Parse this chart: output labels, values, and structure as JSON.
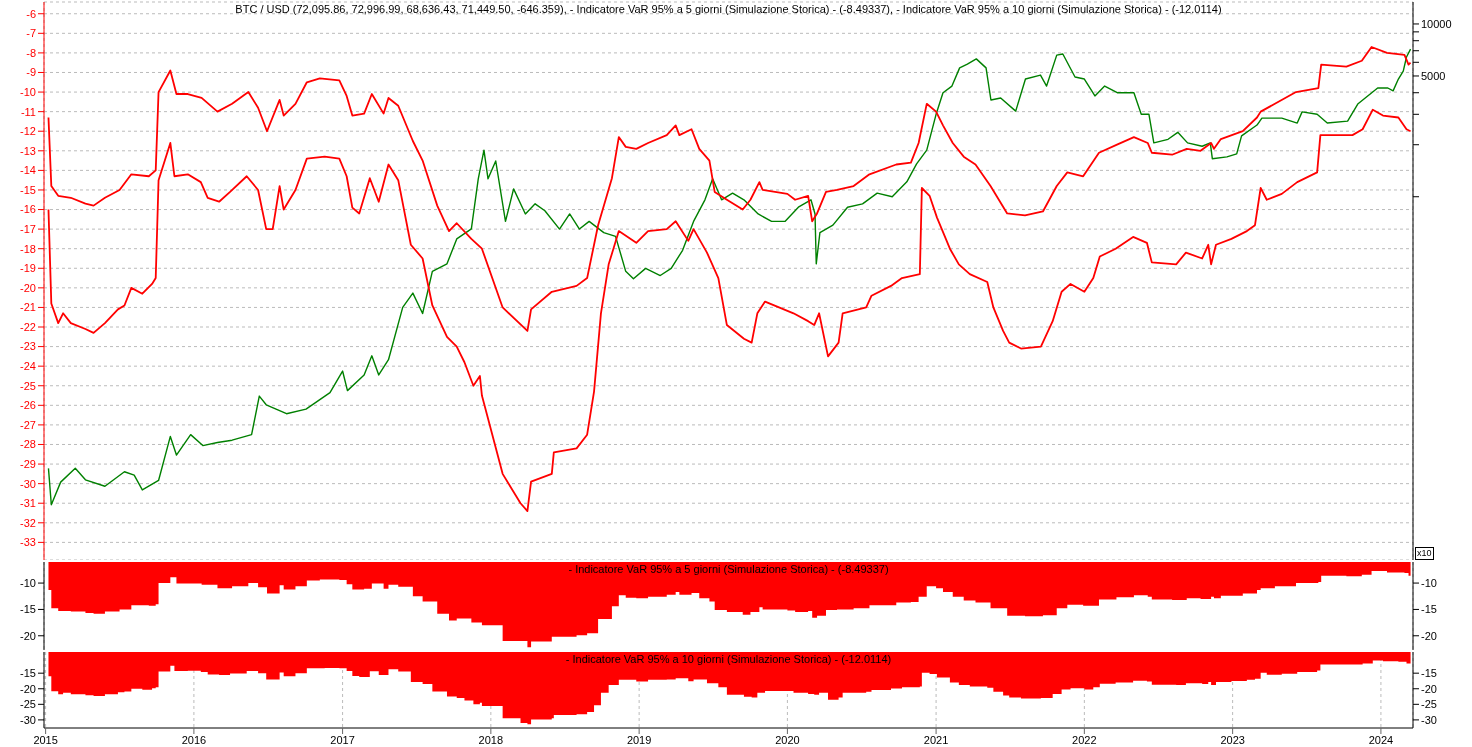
{
  "chart_data": [
    {
      "type": "line",
      "title": "BTC / USD (72,095.86, 72,996.99, 68,636.43, 71,449.50, -646.359), - Indicatore VaR 95% a 5 giorni (Simulazione Storica) - (-8.49337), - Indicatore VaR 95% a 10 giorni (Simulazione Storica) - (-12.0114)",
      "annotations": [
        "x10"
      ],
      "grid": true,
      "tick_labels": "y",
      "log": "y2",
      "xlim": [
        "2014-12-28",
        "2024-03-20"
      ],
      "xticks": [
        "2015",
        "2016",
        "2017",
        "2018",
        "2019",
        "2020",
        "2021",
        "2022",
        "2023",
        "2024"
      ],
      "ylim": [
        -33.9,
        -5.4
      ],
      "yticks": [
        -6,
        -7,
        -8,
        -9,
        -10,
        -11,
        -12,
        -13,
        -14,
        -15,
        -16,
        -17,
        -18,
        -19,
        -20,
        -21,
        -22,
        -23,
        -24,
        -25,
        -26,
        -27,
        -28,
        -29,
        -30,
        -31,
        -32,
        -33
      ],
      "y2lim": [
        7.9,
        13400
      ],
      "y2ticks": [
        {
          "value": 1000,
          "label": null
        },
        {
          "value": 2000,
          "label": null
        },
        {
          "value": 3000,
          "label": null
        },
        {
          "value": 4000,
          "label": null
        },
        5000,
        {
          "value": 6000,
          "label": null
        },
        {
          "value": 7000,
          "label": null
        },
        {
          "value": 8000,
          "label": null
        },
        {
          "value": 9000,
          "label": null
        },
        10000
      ],
      "series": [
        {
          "axis": "y2",
          "color": "#008000",
          "x": [
            "2015-01-08",
            "2015-01-15",
            "2015-02-07",
            "2015-03-15",
            "2015-04-09",
            "2015-05-27",
            "2015-07-14",
            "2015-08-07",
            "2015-08-27",
            "2015-10-06",
            "2015-11-04",
            "2015-11-19",
            "2015-12-24",
            "2016-01-23",
            "2016-02-28",
            "2016-04-04",
            "2016-05-22",
            "2016-06-10",
            "2016-06-27",
            "2016-08-16",
            "2016-10-03",
            "2016-12-01",
            "2017-01-01",
            "2017-01-13",
            "2017-02-23",
            "2017-03-14",
            "2017-03-31",
            "2017-04-24",
            "2017-05-29",
            "2017-06-23",
            "2017-07-17",
            "2017-08-10",
            "2017-09-15",
            "2017-10-09",
            "2017-11-14",
            "2017-12-01",
            "2017-12-15",
            "2017-12-25",
            "2018-01-13",
            "2018-02-06",
            "2018-02-26",
            "2018-03-27",
            "2018-04-20",
            "2018-05-14",
            "2018-06-19",
            "2018-07-14",
            "2018-08-07",
            "2018-08-31",
            "2018-10-06",
            "2018-11-04",
            "2018-11-29",
            "2018-12-18",
            "2019-01-17",
            "2019-02-22",
            "2019-03-21",
            "2019-04-18",
            "2019-05-15",
            "2019-06-12",
            "2019-07-01",
            "2019-07-23",
            "2019-08-19",
            "2019-09-16",
            "2019-10-21",
            "2019-11-23",
            "2019-12-26",
            "2020-01-28",
            "2020-02-28",
            "2020-03-09",
            "2020-03-12",
            "2020-03-21",
            "2020-04-22",
            "2020-05-28",
            "2020-07-04",
            "2020-08-09",
            "2020-09-15",
            "2020-10-21",
            "2020-11-14",
            "2020-12-09",
            "2021-01-01",
            "2021-01-18",
            "2021-02-09",
            "2021-02-28",
            "2021-03-19",
            "2021-04-10",
            "2021-05-04",
            "2021-05-16",
            "2021-06-09",
            "2021-07-16",
            "2021-08-09",
            "2021-09-15",
            "2021-09-30",
            "2021-10-25",
            "2021-11-09",
            "2021-12-09",
            "2022-01-01",
            "2022-01-27",
            "2022-02-20",
            "2022-03-23",
            "2022-05-03",
            "2022-05-21",
            "2022-06-09",
            "2022-06-21",
            "2022-07-26",
            "2022-08-19",
            "2022-09-12",
            "2022-10-18",
            "2022-11-07",
            "2022-11-12",
            "2022-12-18",
            "2023-01-11",
            "2023-01-23",
            "2023-03-02",
            "2023-03-14",
            "2023-05-02",
            "2023-06-09",
            "2023-06-21",
            "2023-07-28",
            "2023-08-22",
            "2023-10-11",
            "2023-11-05",
            "2023-12-24",
            "2024-01-18",
            "2024-01-31",
            "2024-02-13",
            "2024-02-25",
            "2024-03-04",
            "2024-03-14"
          ],
          "values": [
            26.8,
            16.5,
            22.3,
            26.8,
            23,
            21.1,
            25.6,
            24.5,
            20.1,
            22.8,
            41,
            32,
            42,
            36.3,
            37.8,
            39,
            42,
            70.2,
            62.5,
            55.5,
            59,
            73.5,
            98,
            75.5,
            93,
            120,
            93,
            114,
            229,
            277,
            211,
            370,
            409,
            570,
            652,
            1270,
            1860,
            1270,
            1610,
            720,
            1110,
            795,
            910,
            830,
            650,
            795,
            650,
            720,
            620,
            590,
            370,
            335,
            385,
            350,
            385,
            490,
            720,
            960,
            1270,
            960,
            1050,
            960,
            795,
            720,
            720,
            870,
            960,
            795,
            409,
            620,
            685,
            870,
            910,
            1050,
            1000,
            1220,
            1550,
            1860,
            3000,
            4000,
            4370,
            5570,
            5860,
            6280,
            5570,
            3630,
            3730,
            3130,
            4800,
            5060,
            4370,
            6600,
            6700,
            4930,
            4800,
            3830,
            4370,
            4000,
            4000,
            3000,
            3000,
            2050,
            2150,
            2360,
            2050,
            1960,
            2050,
            1660,
            1700,
            1770,
            2250,
            2600,
            2850,
            2850,
            2670,
            3100,
            3000,
            2670,
            2740,
            3440,
            4260,
            4260,
            4100,
            4800,
            5340,
            6440,
            7145
          ]
        },
        {
          "color": "#ff0000",
          "x": [
            "2015-01-08",
            "2015-01-15",
            "2015-02-01",
            "2015-03-04",
            "2015-04-09",
            "2015-04-29",
            "2015-05-27",
            "2015-07-02",
            "2015-07-31",
            "2015-09-12",
            "2015-09-29",
            "2015-10-06",
            "2015-11-04",
            "2015-11-19",
            "2015-12-17",
            "2016-01-20",
            "2016-02-28",
            "2016-04-04",
            "2016-05-14",
            "2016-06-07",
            "2016-06-29",
            "2016-07-30",
            "2016-08-09",
            "2016-09-07",
            "2016-10-05",
            "2016-11-06",
            "2016-12-24",
            "2017-01-11",
            "2017-01-25",
            "2017-02-23",
            "2017-03-14",
            "2017-04-12",
            "2017-04-24",
            "2017-05-18",
            "2017-06-23",
            "2017-07-17",
            "2017-08-22",
            "2017-09-20",
            "2017-10-09",
            "2017-11-14",
            "2017-12-10",
            "2018-01-30",
            "2018-04-01",
            "2018-04-10",
            "2018-05-31",
            "2018-07-31",
            "2018-08-26",
            "2018-09-22",
            "2018-10-26",
            "2018-11-12",
            "2018-11-29",
            "2018-12-25",
            "2019-01-23",
            "2019-03-10",
            "2019-04-01",
            "2019-04-10",
            "2019-05-10",
            "2019-05-29",
            "2019-06-23",
            "2019-07-06",
            "2019-08-05",
            "2019-09-13",
            "2019-10-02",
            "2019-10-24",
            "2019-11-01",
            "2020-01-01",
            "2020-01-20",
            "2020-02-21",
            "2020-03-02",
            "2020-03-14",
            "2020-04-05",
            "2020-05-02",
            "2020-06-12",
            "2020-07-21",
            "2020-09-25",
            "2020-10-31",
            "2020-11-19",
            "2020-12-09",
            "2021-01-01",
            "2021-01-18",
            "2021-02-11",
            "2021-03-10",
            "2021-04-08",
            "2021-05-15",
            "2021-06-25",
            "2021-08-08",
            "2021-09-21",
            "2021-10-25",
            "2021-11-20",
            "2021-12-29",
            "2022-02-06",
            "2022-03-21",
            "2022-05-03",
            "2022-06-06",
            "2022-06-16",
            "2022-08-05",
            "2022-09-10",
            "2022-10-14",
            "2022-11-09",
            "2022-11-16",
            "2022-12-03",
            "2023-01-26",
            "2023-03-02",
            "2023-03-11",
            "2023-04-15",
            "2023-06-06",
            "2023-07-31",
            "2023-08-07",
            "2023-10-08",
            "2023-11-15",
            "2023-12-09",
            "2024-01-16",
            "2024-02-28",
            "2024-03-09",
            "2024-03-14"
          ],
          "values": [
            -11.3,
            -14.8,
            -15.3,
            -15.4,
            -15.7,
            -15.8,
            -15.4,
            -15.0,
            -14.2,
            -14.3,
            -14.0,
            -10.0,
            -8.9,
            -10.1,
            -10.1,
            -10.3,
            -11.0,
            -10.6,
            -10.0,
            -10.8,
            -12.0,
            -10.4,
            -11.2,
            -10.6,
            -9.5,
            -9.3,
            -9.4,
            -10.2,
            -11.2,
            -11.1,
            -10.1,
            -11.1,
            -10.3,
            -10.7,
            -12.5,
            -13.5,
            -15.8,
            -17.1,
            -16.7,
            -17.5,
            -18.0,
            -21.0,
            -22.2,
            -21.1,
            -20.2,
            -19.9,
            -19.5,
            -16.8,
            -14.4,
            -12.3,
            -12.8,
            -12.9,
            -12.6,
            -12.2,
            -11.7,
            -12.2,
            -11.9,
            -12.9,
            -13.5,
            -15.1,
            -15.5,
            -16.0,
            -15.5,
            -14.6,
            -15.0,
            -15.2,
            -15.5,
            -15.3,
            -16.6,
            -16.2,
            -15.1,
            -15.0,
            -14.8,
            -14.2,
            -13.7,
            -13.6,
            -12.6,
            -10.6,
            -11.0,
            -11.7,
            -12.6,
            -13.3,
            -13.7,
            -14.8,
            -16.2,
            -16.3,
            -16.1,
            -14.8,
            -14.1,
            -14.3,
            -13.1,
            -12.7,
            -12.3,
            -12.6,
            -13.1,
            -13.2,
            -12.9,
            -13.0,
            -12.6,
            -12.9,
            -12.4,
            -12.0,
            -11.3,
            -11.0,
            -10.6,
            -10.0,
            -9.8,
            -8.6,
            -8.7,
            -8.4,
            -7.7,
            -8.0,
            -8.1,
            -8.6,
            -8.5
          ]
        },
        {
          "color": "#ff0000",
          "x": [
            "2015-01-08",
            "2015-01-15",
            "2015-02-01",
            "2015-02-13",
            "2015-03-04",
            "2015-04-09",
            "2015-04-29",
            "2015-05-27",
            "2015-06-28",
            "2015-07-14",
            "2015-07-31",
            "2015-08-27",
            "2015-09-20",
            "2015-09-29",
            "2015-10-06",
            "2015-11-04",
            "2015-11-14",
            "2015-12-17",
            "2016-01-18",
            "2016-02-04",
            "2016-03-03",
            "2016-03-30",
            "2016-05-10",
            "2016-06-07",
            "2016-06-27",
            "2016-07-13",
            "2016-07-30",
            "2016-08-09",
            "2016-09-07",
            "2016-10-05",
            "2016-11-18",
            "2016-12-24",
            "2017-01-11",
            "2017-01-25",
            "2017-02-11",
            "2017-03-09",
            "2017-03-31",
            "2017-04-24",
            "2017-05-18",
            "2017-06-18",
            "2017-07-17",
            "2017-08-10",
            "2017-09-15",
            "2017-10-09",
            "2017-10-28",
            "2017-11-19",
            "2017-12-05",
            "2017-12-10",
            "2018-01-30",
            "2018-03-15",
            "2018-04-01",
            "2018-04-10",
            "2018-05-31",
            "2018-06-05",
            "2018-07-31",
            "2018-08-26",
            "2018-09-12",
            "2018-09-29",
            "2018-10-18",
            "2018-11-12",
            "2018-12-25",
            "2019-01-23",
            "2019-03-10",
            "2019-04-01",
            "2019-05-02",
            "2019-05-15",
            "2019-06-17",
            "2019-07-15",
            "2019-08-05",
            "2019-09-16",
            "2019-10-05",
            "2019-10-19",
            "2019-11-07",
            "2020-01-16",
            "2020-02-21",
            "2020-03-07",
            "2020-03-19",
            "2020-04-10",
            "2020-05-06",
            "2020-05-16",
            "2020-07-13",
            "2020-07-26",
            "2020-09-12",
            "2020-10-09",
            "2020-11-22",
            "2020-11-27",
            "2020-12-16",
            "2021-01-03",
            "2021-02-04",
            "2021-02-26",
            "2021-03-25",
            "2021-05-07",
            "2021-05-22",
            "2021-06-15",
            "2021-06-30",
            "2021-07-29",
            "2021-09-16",
            "2021-10-15",
            "2021-11-06",
            "2021-11-28",
            "2022-01-01",
            "2022-01-23",
            "2022-02-08",
            "2022-03-19",
            "2022-05-01",
            "2022-06-04",
            "2022-06-16",
            "2022-08-15",
            "2022-09-08",
            "2022-10-18",
            "2022-11-02",
            "2022-11-09",
            "2022-11-21",
            "2022-12-29",
            "2023-02-05",
            "2023-02-25",
            "2023-03-11",
            "2023-03-26",
            "2023-05-02",
            "2023-06-09",
            "2023-07-28",
            "2023-08-05",
            "2023-10-23",
            "2023-11-17",
            "2023-12-12",
            "2024-01-06",
            "2024-02-13",
            "2024-03-04",
            "2024-03-14"
          ],
          "values": [
            -16.0,
            -20.8,
            -21.8,
            -21.3,
            -21.8,
            -22.1,
            -22.3,
            -21.8,
            -21.1,
            -20.9,
            -20.0,
            -20.3,
            -19.8,
            -19.5,
            -14.5,
            -12.6,
            -14.3,
            -14.2,
            -14.6,
            -15.4,
            -15.6,
            -15.1,
            -14.3,
            -15.0,
            -17.0,
            -17.0,
            -14.8,
            -16.0,
            -15.0,
            -13.4,
            -13.3,
            -13.4,
            -14.3,
            -15.9,
            -16.2,
            -14.4,
            -15.6,
            -13.7,
            -14.5,
            -17.8,
            -18.5,
            -20.9,
            -22.5,
            -23.0,
            -23.8,
            -25.0,
            -24.5,
            -25.5,
            -29.5,
            -31.0,
            -31.4,
            -29.9,
            -29.5,
            -28.4,
            -28.2,
            -27.5,
            -25.3,
            -21.3,
            -18.8,
            -17.1,
            -17.7,
            -17.1,
            -17.0,
            -16.6,
            -17.6,
            -17.0,
            -18.2,
            -19.5,
            -21.9,
            -22.6,
            -22.8,
            -21.3,
            -20.7,
            -21.3,
            -21.7,
            -21.9,
            -21.3,
            -23.5,
            -22.8,
            -21.3,
            -21.0,
            -20.4,
            -19.9,
            -19.5,
            -19.3,
            -14.9,
            -15.3,
            -16.4,
            -18.0,
            -18.8,
            -19.3,
            -19.7,
            -21.0,
            -22.2,
            -22.8,
            -23.1,
            -23.0,
            -21.7,
            -20.2,
            -19.8,
            -20.2,
            -19.5,
            -18.4,
            -18.0,
            -17.4,
            -17.7,
            -18.7,
            -18.8,
            -18.2,
            -18.5,
            -17.8,
            -18.8,
            -17.8,
            -17.5,
            -17.1,
            -16.8,
            -14.9,
            -15.5,
            -15.2,
            -14.6,
            -14.1,
            -12.2,
            -12.2,
            -11.9,
            -10.9,
            -11.2,
            -11.3,
            -11.9,
            -12.0
          ]
        }
      ]
    },
    {
      "type": "area",
      "title": "- Indicatore VaR 95% a 5 giorni (Simulazione Storica) - (-8.49337)",
      "grid": "x",
      "tick_labels": "y",
      "color": "#ff0000",
      "xlim": [
        "2014-12-28",
        "2024-03-20"
      ],
      "xticks": [
        "2015",
        "2016",
        "2017",
        "2018",
        "2019",
        "2020",
        "2021",
        "2022",
        "2023",
        "2024"
      ],
      "ylim": [
        -22.7,
        -6
      ],
      "yticks": [
        -10,
        -15,
        -20
      ],
      "y2lim": [
        -22.7,
        -6
      ],
      "y2ticks": [
        -10,
        -15,
        -20
      ],
      "x": [
        "2015-01-08",
        "2015-01-15",
        "2015-02-01",
        "2015-03-04",
        "2015-04-09",
        "2015-04-29",
        "2015-05-27",
        "2015-07-02",
        "2015-07-31",
        "2015-09-12",
        "2015-09-29",
        "2015-10-06",
        "2015-11-04",
        "2015-11-19",
        "2015-12-17",
        "2016-01-20",
        "2016-02-28",
        "2016-04-04",
        "2016-05-14",
        "2016-06-07",
        "2016-06-29",
        "2016-07-30",
        "2016-08-09",
        "2016-09-07",
        "2016-10-05",
        "2016-11-06",
        "2016-12-24",
        "2017-01-11",
        "2017-01-25",
        "2017-02-23",
        "2017-03-14",
        "2017-04-12",
        "2017-04-24",
        "2017-05-18",
        "2017-06-23",
        "2017-07-17",
        "2017-08-22",
        "2017-09-20",
        "2017-10-09",
        "2017-11-14",
        "2017-12-10",
        "2018-01-30",
        "2018-04-01",
        "2018-04-10",
        "2018-05-31",
        "2018-07-31",
        "2018-08-26",
        "2018-09-22",
        "2018-10-26",
        "2018-11-12",
        "2018-11-29",
        "2018-12-25",
        "2019-01-23",
        "2019-03-10",
        "2019-04-01",
        "2019-04-10",
        "2019-05-10",
        "2019-05-29",
        "2019-06-23",
        "2019-07-06",
        "2019-08-05",
        "2019-09-13",
        "2019-10-02",
        "2019-10-24",
        "2019-11-01",
        "2020-01-01",
        "2020-01-20",
        "2020-02-21",
        "2020-03-02",
        "2020-03-14",
        "2020-04-05",
        "2020-05-02",
        "2020-06-12",
        "2020-07-21",
        "2020-09-25",
        "2020-10-31",
        "2020-11-19",
        "2020-12-09",
        "2021-01-01",
        "2021-01-18",
        "2021-02-11",
        "2021-03-10",
        "2021-04-08",
        "2021-05-15",
        "2021-06-25",
        "2021-08-08",
        "2021-09-21",
        "2021-10-25",
        "2021-11-20",
        "2021-12-29",
        "2022-02-06",
        "2022-03-21",
        "2022-05-03",
        "2022-06-06",
        "2022-06-16",
        "2022-08-05",
        "2022-09-10",
        "2022-10-14",
        "2022-11-09",
        "2022-11-16",
        "2022-12-03",
        "2023-01-26",
        "2023-03-02",
        "2023-03-11",
        "2023-04-15",
        "2023-06-06",
        "2023-07-31",
        "2023-08-07",
        "2023-10-08",
        "2023-11-15",
        "2023-12-09",
        "2024-01-16",
        "2024-02-28",
        "2024-03-09",
        "2024-03-14"
      ],
      "values": [
        -11.3,
        -14.8,
        -15.3,
        -15.4,
        -15.7,
        -15.8,
        -15.4,
        -15.0,
        -14.2,
        -14.3,
        -14.0,
        -10.0,
        -8.9,
        -10.1,
        -10.1,
        -10.3,
        -11.0,
        -10.6,
        -10.0,
        -10.8,
        -12.0,
        -10.4,
        -11.2,
        -10.6,
        -9.5,
        -9.3,
        -9.4,
        -10.2,
        -11.2,
        -11.1,
        -10.1,
        -11.1,
        -10.3,
        -10.7,
        -12.5,
        -13.5,
        -15.8,
        -17.1,
        -16.7,
        -17.5,
        -18.0,
        -21.0,
        -22.2,
        -21.1,
        -20.2,
        -19.9,
        -19.5,
        -16.8,
        -14.4,
        -12.3,
        -12.8,
        -12.9,
        -12.6,
        -12.2,
        -11.7,
        -12.2,
        -11.9,
        -12.9,
        -13.5,
        -15.1,
        -15.5,
        -16.0,
        -15.5,
        -14.6,
        -15.0,
        -15.2,
        -15.5,
        -15.3,
        -16.6,
        -16.2,
        -15.1,
        -15.0,
        -14.8,
        -14.2,
        -13.7,
        -13.6,
        -12.6,
        -10.6,
        -11.0,
        -11.7,
        -12.6,
        -13.3,
        -13.7,
        -14.8,
        -16.2,
        -16.3,
        -16.1,
        -14.8,
        -14.1,
        -14.3,
        -13.1,
        -12.7,
        -12.3,
        -12.6,
        -13.1,
        -13.2,
        -12.9,
        -13.0,
        -12.6,
        -12.9,
        -12.4,
        -12.0,
        -11.3,
        -11.0,
        -10.6,
        -10.0,
        -9.8,
        -8.6,
        -8.7,
        -8.4,
        -7.7,
        -8.0,
        -8.1,
        -8.6,
        -8.5
      ]
    },
    {
      "type": "area",
      "title": "- Indicatore VaR 95% a 10 giorni (Simulazione Storica) - (-12.0114)",
      "grid": "x",
      "color": "#ff0000",
      "xlim": [
        "2014-12-28",
        "2024-03-20"
      ],
      "xticks": [
        "2015",
        "2016",
        "2017",
        "2018",
        "2019",
        "2020",
        "2021",
        "2022",
        "2023",
        "2024"
      ],
      "ylim": [
        -32.6,
        -8.2
      ],
      "yticks": [
        -15,
        -20,
        -25,
        -30
      ],
      "y2lim": [
        -32.6,
        -8.2
      ],
      "y2ticks": [
        -15,
        -20,
        -25,
        -30
      ],
      "x": [
        "2015-01-08",
        "2015-01-15",
        "2015-02-01",
        "2015-02-13",
        "2015-03-04",
        "2015-04-09",
        "2015-04-29",
        "2015-05-27",
        "2015-06-28",
        "2015-07-14",
        "2015-07-31",
        "2015-08-27",
        "2015-09-20",
        "2015-09-29",
        "2015-10-06",
        "2015-11-04",
        "2015-11-14",
        "2015-12-17",
        "2016-01-18",
        "2016-02-04",
        "2016-03-03",
        "2016-03-30",
        "2016-05-10",
        "2016-06-07",
        "2016-06-27",
        "2016-07-13",
        "2016-07-30",
        "2016-08-09",
        "2016-09-07",
        "2016-10-05",
        "2016-11-18",
        "2016-12-24",
        "2017-01-11",
        "2017-01-25",
        "2017-02-11",
        "2017-03-09",
        "2017-03-31",
        "2017-04-24",
        "2017-05-18",
        "2017-06-18",
        "2017-07-17",
        "2017-08-10",
        "2017-09-15",
        "2017-10-09",
        "2017-10-28",
        "2017-11-19",
        "2017-12-05",
        "2017-12-10",
        "2018-01-30",
        "2018-03-15",
        "2018-04-01",
        "2018-04-10",
        "2018-05-31",
        "2018-06-05",
        "2018-07-31",
        "2018-08-26",
        "2018-09-12",
        "2018-09-29",
        "2018-10-18",
        "2018-11-12",
        "2018-12-25",
        "2019-01-23",
        "2019-03-10",
        "2019-04-01",
        "2019-05-02",
        "2019-05-15",
        "2019-06-17",
        "2019-07-15",
        "2019-08-05",
        "2019-09-16",
        "2019-10-05",
        "2019-10-19",
        "2019-11-07",
        "2020-01-16",
        "2020-02-21",
        "2020-03-07",
        "2020-03-19",
        "2020-04-10",
        "2020-05-06",
        "2020-05-16",
        "2020-07-13",
        "2020-07-26",
        "2020-09-12",
        "2020-10-09",
        "2020-11-22",
        "2020-11-27",
        "2020-12-16",
        "2021-01-03",
        "2021-02-04",
        "2021-02-26",
        "2021-03-25",
        "2021-05-07",
        "2021-05-22",
        "2021-06-15",
        "2021-06-30",
        "2021-07-29",
        "2021-09-16",
        "2021-10-15",
        "2021-11-06",
        "2021-11-28",
        "2022-01-01",
        "2022-01-23",
        "2022-02-08",
        "2022-03-19",
        "2022-05-01",
        "2022-06-04",
        "2022-06-16",
        "2022-08-15",
        "2022-09-08",
        "2022-10-18",
        "2022-11-02",
        "2022-11-09",
        "2022-11-21",
        "2022-12-29",
        "2023-02-05",
        "2023-02-25",
        "2023-03-11",
        "2023-03-26",
        "2023-05-02",
        "2023-06-09",
        "2023-07-28",
        "2023-08-05",
        "2023-10-23",
        "2023-11-17",
        "2023-12-12",
        "2024-01-06",
        "2024-02-13",
        "2024-03-04",
        "2024-03-14"
      ],
      "values": [
        -16.0,
        -20.8,
        -21.8,
        -21.3,
        -21.8,
        -22.1,
        -22.3,
        -21.8,
        -21.1,
        -20.9,
        -20.0,
        -20.3,
        -19.8,
        -19.5,
        -14.5,
        -12.6,
        -14.3,
        -14.2,
        -14.6,
        -15.4,
        -15.6,
        -15.1,
        -14.3,
        -15.0,
        -17.0,
        -17.0,
        -14.8,
        -16.0,
        -15.0,
        -13.4,
        -13.3,
        -13.4,
        -14.3,
        -15.9,
        -16.2,
        -14.4,
        -15.6,
        -13.7,
        -14.5,
        -17.8,
        -18.5,
        -20.9,
        -22.5,
        -23.0,
        -23.8,
        -25.0,
        -24.5,
        -25.5,
        -29.5,
        -31.0,
        -31.4,
        -29.9,
        -29.5,
        -28.4,
        -28.2,
        -27.5,
        -25.3,
        -21.3,
        -18.8,
        -17.1,
        -17.7,
        -17.1,
        -17.0,
        -16.6,
        -17.6,
        -17.0,
        -18.2,
        -19.5,
        -21.9,
        -22.6,
        -22.8,
        -21.3,
        -20.7,
        -21.3,
        -21.7,
        -21.9,
        -21.3,
        -23.5,
        -22.8,
        -21.3,
        -21.0,
        -20.4,
        -19.9,
        -19.5,
        -19.3,
        -14.9,
        -15.3,
        -16.4,
        -18.0,
        -18.8,
        -19.3,
        -19.7,
        -21.0,
        -22.2,
        -22.8,
        -23.1,
        -23.0,
        -21.7,
        -20.2,
        -19.8,
        -20.2,
        -19.5,
        -18.4,
        -18.0,
        -17.4,
        -17.7,
        -18.7,
        -18.8,
        -18.2,
        -18.5,
        -17.8,
        -18.8,
        -17.8,
        -17.5,
        -17.1,
        -16.8,
        -14.9,
        -15.5,
        -15.2,
        -14.6,
        -14.1,
        -12.2,
        -12.2,
        -11.9,
        -10.9,
        -11.2,
        -11.3,
        -11.9,
        -12.0
      ]
    }
  ]
}
